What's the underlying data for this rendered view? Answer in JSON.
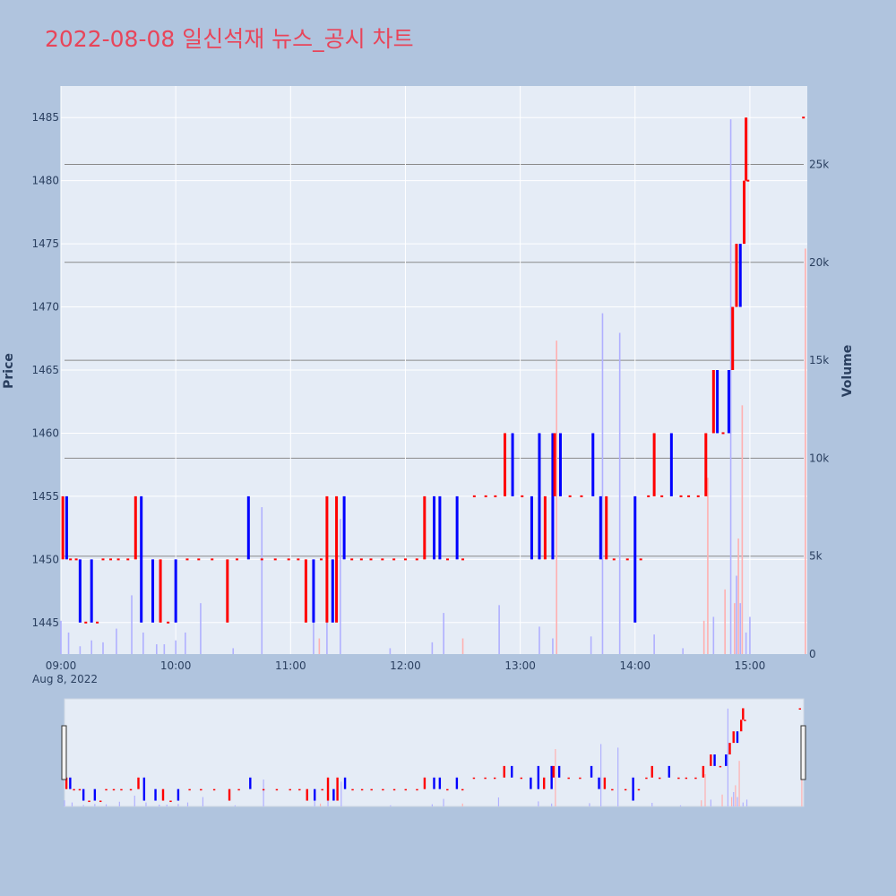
{
  "page": {
    "title": "2022-08-08 일신석재 뉴스_공시 차트"
  },
  "chart_data": {
    "type": "candlestick",
    "title": "2022-08-08 일신석재 뉴스_공시 차트",
    "ylabel": "Price",
    "y2label": "Volume",
    "date_label": "Aug 8, 2022",
    "xlim": [
      540,
      930
    ],
    "ylim": [
      1442.5,
      1487.5
    ],
    "y2lim": [
      0,
      29000
    ],
    "x_ticks": [
      {
        "label": "09:00",
        "min": 540
      },
      {
        "label": "10:00",
        "min": 600
      },
      {
        "label": "11:00",
        "min": 660
      },
      {
        "label": "12:00",
        "min": 720
      },
      {
        "label": "13:00",
        "min": 780
      },
      {
        "label": "14:00",
        "min": 840
      },
      {
        "label": "15:00",
        "min": 900
      }
    ],
    "y_ticks": [
      1445,
      1450,
      1455,
      1460,
      1465,
      1470,
      1475,
      1480,
      1485
    ],
    "y2_ticks": [
      {
        "label": "0",
        "value": 0
      },
      {
        "label": "5k",
        "value": 5000
      },
      {
        "label": "10k",
        "value": 10000
      },
      {
        "label": "15k",
        "value": 15000
      },
      {
        "label": "20k",
        "value": 20000
      },
      {
        "label": "25k",
        "value": 25000
      }
    ],
    "colors": {
      "up": "#ff0000",
      "down": "#0000ff",
      "up_volume": "#ffb0b0",
      "down_volume": "#b0b0ff"
    },
    "candles": [
      {
        "t": 541,
        "o": 1450,
        "c": 1455
      },
      {
        "t": 543,
        "o": 1455,
        "c": 1450
      },
      {
        "t": 545,
        "o": 1450,
        "c": 1450
      },
      {
        "t": 548,
        "o": 1450,
        "c": 1450
      },
      {
        "t": 550,
        "o": 1450,
        "c": 1445
      },
      {
        "t": 553,
        "o": 1445,
        "c": 1445
      },
      {
        "t": 556,
        "o": 1450,
        "c": 1445
      },
      {
        "t": 559,
        "o": 1445,
        "c": 1445
      },
      {
        "t": 562,
        "o": 1450,
        "c": 1450
      },
      {
        "t": 566,
        "o": 1450,
        "c": 1450
      },
      {
        "t": 570,
        "o": 1450,
        "c": 1450
      },
      {
        "t": 575,
        "o": 1450,
        "c": 1450
      },
      {
        "t": 579,
        "o": 1450,
        "c": 1455
      },
      {
        "t": 582,
        "o": 1455,
        "c": 1445
      },
      {
        "t": 588,
        "o": 1450,
        "c": 1445
      },
      {
        "t": 592,
        "o": 1445,
        "c": 1450
      },
      {
        "t": 596,
        "o": 1445,
        "c": 1445
      },
      {
        "t": 600,
        "o": 1450,
        "c": 1445
      },
      {
        "t": 606,
        "o": 1450,
        "c": 1450
      },
      {
        "t": 612,
        "o": 1450,
        "c": 1450
      },
      {
        "t": 619,
        "o": 1450,
        "c": 1450
      },
      {
        "t": 627,
        "o": 1445,
        "c": 1450
      },
      {
        "t": 632,
        "o": 1450,
        "c": 1450
      },
      {
        "t": 638,
        "o": 1455,
        "c": 1450
      },
      {
        "t": 645,
        "o": 1450,
        "c": 1450
      },
      {
        "t": 652,
        "o": 1450,
        "c": 1450
      },
      {
        "t": 659,
        "o": 1450,
        "c": 1450
      },
      {
        "t": 664,
        "o": 1450,
        "c": 1450
      },
      {
        "t": 668,
        "o": 1445,
        "c": 1450
      },
      {
        "t": 672,
        "o": 1450,
        "c": 1445
      },
      {
        "t": 676,
        "o": 1450,
        "c": 1450
      },
      {
        "t": 679,
        "o": 1445,
        "c": 1455
      },
      {
        "t": 682,
        "o": 1450,
        "c": 1445
      },
      {
        "t": 684,
        "o": 1445,
        "c": 1455
      },
      {
        "t": 688,
        "o": 1455,
        "c": 1450
      },
      {
        "t": 692,
        "o": 1450,
        "c": 1450
      },
      {
        "t": 697,
        "o": 1450,
        "c": 1450
      },
      {
        "t": 702,
        "o": 1450,
        "c": 1450
      },
      {
        "t": 708,
        "o": 1450,
        "c": 1450
      },
      {
        "t": 714,
        "o": 1450,
        "c": 1450
      },
      {
        "t": 720,
        "o": 1450,
        "c": 1450
      },
      {
        "t": 726,
        "o": 1450,
        "c": 1450
      },
      {
        "t": 730,
        "o": 1450,
        "c": 1455
      },
      {
        "t": 735,
        "o": 1455,
        "c": 1450
      },
      {
        "t": 738,
        "o": 1455,
        "c": 1450
      },
      {
        "t": 742,
        "o": 1450,
        "c": 1450
      },
      {
        "t": 747,
        "o": 1455,
        "c": 1450
      },
      {
        "t": 750,
        "o": 1450,
        "c": 1450
      },
      {
        "t": 756,
        "o": 1455,
        "c": 1455
      },
      {
        "t": 762,
        "o": 1455,
        "c": 1455
      },
      {
        "t": 767,
        "o": 1455,
        "c": 1455
      },
      {
        "t": 772,
        "o": 1455,
        "c": 1460
      },
      {
        "t": 776,
        "o": 1460,
        "c": 1455
      },
      {
        "t": 781,
        "o": 1455,
        "c": 1455
      },
      {
        "t": 786,
        "o": 1455,
        "c": 1450
      },
      {
        "t": 790,
        "o": 1460,
        "c": 1450
      },
      {
        "t": 793,
        "o": 1450,
        "c": 1455
      },
      {
        "t": 797,
        "o": 1460,
        "c": 1450
      },
      {
        "t": 798,
        "o": 1455,
        "c": 1460
      },
      {
        "t": 801,
        "o": 1460,
        "c": 1455
      },
      {
        "t": 806,
        "o": 1455,
        "c": 1455
      },
      {
        "t": 812,
        "o": 1455,
        "c": 1455
      },
      {
        "t": 818,
        "o": 1460,
        "c": 1455
      },
      {
        "t": 822,
        "o": 1455,
        "c": 1450
      },
      {
        "t": 825,
        "o": 1450,
        "c": 1455
      },
      {
        "t": 829,
        "o": 1450,
        "c": 1450
      },
      {
        "t": 836,
        "o": 1450,
        "c": 1450
      },
      {
        "t": 840,
        "o": 1455,
        "c": 1445
      },
      {
        "t": 843,
        "o": 1450,
        "c": 1450
      },
      {
        "t": 847,
        "o": 1455,
        "c": 1455
      },
      {
        "t": 850,
        "o": 1455,
        "c": 1460
      },
      {
        "t": 854,
        "o": 1455,
        "c": 1455
      },
      {
        "t": 859,
        "o": 1460,
        "c": 1455
      },
      {
        "t": 864,
        "o": 1455,
        "c": 1455
      },
      {
        "t": 868,
        "o": 1455,
        "c": 1455
      },
      {
        "t": 873,
        "o": 1455,
        "c": 1455
      },
      {
        "t": 877,
        "o": 1455,
        "c": 1460
      },
      {
        "t": 881,
        "o": 1460,
        "c": 1465
      },
      {
        "t": 883,
        "o": 1465,
        "c": 1460
      },
      {
        "t": 886,
        "o": 1460,
        "c": 1460
      },
      {
        "t": 889,
        "o": 1465,
        "c": 1460
      },
      {
        "t": 891,
        "o": 1465,
        "c": 1470
      },
      {
        "t": 893,
        "o": 1470,
        "c": 1475
      },
      {
        "t": 895,
        "o": 1475,
        "c": 1470
      },
      {
        "t": 897,
        "o": 1475,
        "c": 1480
      },
      {
        "t": 898,
        "o": 1480,
        "c": 1485
      },
      {
        "t": 899,
        "o": 1480,
        "c": 1480
      },
      {
        "t": 928,
        "o": 1485,
        "c": 1485
      }
    ],
    "volume": [
      {
        "t": 540,
        "v": 1700,
        "up": false
      },
      {
        "t": 544,
        "v": 1100,
        "up": false
      },
      {
        "t": 550,
        "v": 400,
        "up": false
      },
      {
        "t": 556,
        "v": 700,
        "up": false
      },
      {
        "t": 562,
        "v": 600,
        "up": false
      },
      {
        "t": 569,
        "v": 1300,
        "up": false
      },
      {
        "t": 577,
        "v": 3000,
        "up": false
      },
      {
        "t": 583,
        "v": 1100,
        "up": false
      },
      {
        "t": 590,
        "v": 500,
        "up": false
      },
      {
        "t": 594,
        "v": 500,
        "up": false
      },
      {
        "t": 600,
        "v": 700,
        "up": false
      },
      {
        "t": 605,
        "v": 1100,
        "up": false
      },
      {
        "t": 613,
        "v": 2600,
        "up": false
      },
      {
        "t": 630,
        "v": 300,
        "up": false
      },
      {
        "t": 645,
        "v": 7500,
        "up": false
      },
      {
        "t": 672,
        "v": 4400,
        "up": false
      },
      {
        "t": 675,
        "v": 800,
        "up": true
      },
      {
        "t": 679,
        "v": 1800,
        "up": false
      },
      {
        "t": 686,
        "v": 6900,
        "up": false
      },
      {
        "t": 712,
        "v": 300,
        "up": false
      },
      {
        "t": 734,
        "v": 600,
        "up": false
      },
      {
        "t": 740,
        "v": 2100,
        "up": false
      },
      {
        "t": 750,
        "v": 800,
        "up": true
      },
      {
        "t": 769,
        "v": 2500,
        "up": false
      },
      {
        "t": 790,
        "v": 1400,
        "up": false
      },
      {
        "t": 797,
        "v": 800,
        "up": false
      },
      {
        "t": 799,
        "v": 16000,
        "up": true
      },
      {
        "t": 817,
        "v": 900,
        "up": false
      },
      {
        "t": 823,
        "v": 17400,
        "up": false
      },
      {
        "t": 832,
        "v": 16400,
        "up": false
      },
      {
        "t": 850,
        "v": 1000,
        "up": false
      },
      {
        "t": 865,
        "v": 300,
        "up": false
      },
      {
        "t": 876,
        "v": 1700,
        "up": true
      },
      {
        "t": 878,
        "v": 9000,
        "up": true
      },
      {
        "t": 881,
        "v": 1900,
        "up": false
      },
      {
        "t": 887,
        "v": 3300,
        "up": true
      },
      {
        "t": 890,
        "v": 27300,
        "up": false
      },
      {
        "t": 892,
        "v": 2600,
        "up": true
      },
      {
        "t": 893,
        "v": 4000,
        "up": false
      },
      {
        "t": 894,
        "v": 5900,
        "up": true
      },
      {
        "t": 895,
        "v": 2600,
        "up": false
      },
      {
        "t": 896,
        "v": 12700,
        "up": true
      },
      {
        "t": 898,
        "v": 1100,
        "up": false
      },
      {
        "t": 900,
        "v": 1900,
        "up": false
      },
      {
        "t": 929,
        "v": 20700,
        "up": true
      }
    ]
  }
}
